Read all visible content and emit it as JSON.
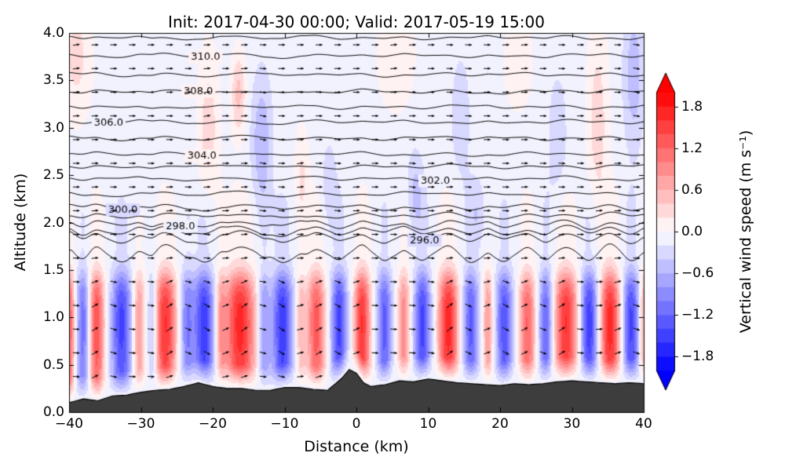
{
  "figure": {
    "title": "Init: 2017-04-30 00:00; Valid: 2017-05-19 15:00",
    "xlabel": "Distance (km)",
    "ylabel": "Altitude (km)",
    "colorbar_label": "Vertical wind speed (m s⁻¹)"
  },
  "chart_data": {
    "type": "heatmap",
    "subtype": "filled-contour-vertical-cross-section",
    "title": "Init: 2017-04-30 00:00; Valid: 2017-05-19 15:00",
    "xlabel": "Distance (km)",
    "ylabel": "Altitude (km)",
    "xlim": [
      -40,
      40
    ],
    "ylim": [
      0,
      4
    ],
    "grid": false,
    "x_ticks": [
      {
        "label": "−40",
        "value": -40
      },
      {
        "label": "−30",
        "value": -30
      },
      {
        "label": "−20",
        "value": -20
      },
      {
        "label": "−10",
        "value": -10
      },
      {
        "label": "0",
        "value": 0
      },
      {
        "label": "10",
        "value": 10
      },
      {
        "label": "20",
        "value": 20
      },
      {
        "label": "30",
        "value": 30
      },
      {
        "label": "40",
        "value": 40
      }
    ],
    "y_ticks": [
      {
        "label": "0.0",
        "value": 0.0
      },
      {
        "label": "0.5",
        "value": 0.5
      },
      {
        "label": "1.0",
        "value": 1.0
      },
      {
        "label": "1.5",
        "value": 1.5
      },
      {
        "label": "2.0",
        "value": 2.0
      },
      {
        "label": "2.5",
        "value": 2.5
      },
      {
        "label": "3.0",
        "value": 3.0
      },
      {
        "label": "3.5",
        "value": 3.5
      },
      {
        "label": "4.0",
        "value": 4.0
      }
    ],
    "colorbar": {
      "label": "Vertical wind speed (m s⁻¹)",
      "cmap": "blue-white-red",
      "vmin": -2.0,
      "vmax": 2.0,
      "level_step": 0.2,
      "extend": "both",
      "ticks": [
        {
          "label": "1.8",
          "value": 1.8
        },
        {
          "label": "1.2",
          "value": 1.2
        },
        {
          "label": "0.6",
          "value": 0.6
        },
        {
          "label": "0.0",
          "value": 0.0
        },
        {
          "label": "−0.6",
          "value": -0.6
        },
        {
          "label": "−1.2",
          "value": -1.2
        },
        {
          "label": "−1.8",
          "value": -1.8
        }
      ]
    },
    "theta_contours": {
      "units": "K",
      "line_color": "#000000",
      "levels": [
        {
          "value": 295,
          "z": 1.66
        },
        {
          "value": 296,
          "z": 1.84
        },
        {
          "value": 297,
          "z": 1.91
        },
        {
          "value": 298,
          "z": 1.98
        },
        {
          "value": 299,
          "z": 2.07
        },
        {
          "value": 300,
          "z": 2.16
        },
        {
          "value": 301,
          "z": 2.3
        },
        {
          "value": 302,
          "z": 2.46
        },
        {
          "value": 303,
          "z": 2.59
        },
        {
          "value": 304,
          "z": 2.72
        },
        {
          "value": 305,
          "z": 2.89
        },
        {
          "value": 306,
          "z": 3.06
        },
        {
          "value": 307,
          "z": 3.22
        },
        {
          "value": 308,
          "z": 3.38
        },
        {
          "value": 309,
          "z": 3.56
        },
        {
          "value": 310,
          "z": 3.76
        },
        {
          "value": 311,
          "z": 3.95
        }
      ],
      "labels": [
        {
          "text": "310.0",
          "value": 310,
          "x": -21
        },
        {
          "text": "308.0",
          "value": 308,
          "x": -22
        },
        {
          "text": "306.0",
          "value": 306,
          "x": -34.5
        },
        {
          "text": "304.0",
          "value": 304,
          "x": -21.5
        },
        {
          "text": "302.0",
          "value": 302,
          "x": 11
        },
        {
          "text": "300.0",
          "value": 300,
          "x": -32.5
        },
        {
          "text": "298.0",
          "value": 298,
          "x": -24.5
        },
        {
          "text": "296.0",
          "value": 296,
          "x": 9.5
        }
      ]
    },
    "w_field": {
      "units": "m s-1",
      "background_offset": -0.08,
      "bands": [
        {
          "x": -39.9,
          "amp": 1.3,
          "sigma": 0.5
        },
        {
          "x": -38.0,
          "amp": -1.1,
          "sigma": 0.7
        },
        {
          "x": -36.2,
          "amp": 1.5,
          "sigma": 0.8
        },
        {
          "x": -32.7,
          "amp": -1.4,
          "sigma": 1.0
        },
        {
          "x": -30.3,
          "amp": 0.9,
          "sigma": 0.6
        },
        {
          "x": -28.4,
          "amp": -0.7,
          "sigma": 0.5
        },
        {
          "x": -26.6,
          "amp": 1.7,
          "sigma": 1.1
        },
        {
          "x": -23.6,
          "amp": -0.9,
          "sigma": 0.7
        },
        {
          "x": -21.2,
          "amp": -1.5,
          "sigma": 1.0
        },
        {
          "x": -18.9,
          "amp": 0.7,
          "sigma": 0.5
        },
        {
          "x": -16.2,
          "amp": 1.8,
          "sigma": 1.5
        },
        {
          "x": -12.9,
          "amp": -0.8,
          "sigma": 0.6
        },
        {
          "x": -10.3,
          "amp": -1.5,
          "sigma": 1.0
        },
        {
          "x": -7.8,
          "amp": 0.6,
          "sigma": 0.5
        },
        {
          "x": -5.6,
          "amp": 1.4,
          "sigma": 0.9
        },
        {
          "x": -2.4,
          "amp": -1.4,
          "sigma": 0.8
        },
        {
          "x": 0.8,
          "amp": 1.7,
          "sigma": 0.8
        },
        {
          "x": 3.9,
          "amp": -1.2,
          "sigma": 0.7
        },
        {
          "x": 6.6,
          "amp": 1.0,
          "sigma": 0.6
        },
        {
          "x": 9.2,
          "amp": -1.4,
          "sigma": 0.8
        },
        {
          "x": 12.8,
          "amp": 1.8,
          "sigma": 1.0
        },
        {
          "x": 15.9,
          "amp": -1.2,
          "sigma": 0.8
        },
        {
          "x": 18.3,
          "amp": 0.9,
          "sigma": 0.5
        },
        {
          "x": 20.6,
          "amp": -1.3,
          "sigma": 0.8
        },
        {
          "x": 23.8,
          "amp": 1.3,
          "sigma": 0.8
        },
        {
          "x": 26.4,
          "amp": -1.2,
          "sigma": 0.7
        },
        {
          "x": 29.2,
          "amp": 1.7,
          "sigma": 1.2
        },
        {
          "x": 32.4,
          "amp": -1.5,
          "sigma": 0.9
        },
        {
          "x": 35.3,
          "amp": 1.8,
          "sigma": 1.0
        },
        {
          "x": 38.2,
          "amp": -1.4,
          "sigma": 0.8
        },
        {
          "x": 40.0,
          "amp": 0.8,
          "sigma": 0.4
        }
      ],
      "upper_blobs": [
        {
          "x": -39.0,
          "z": 3.75,
          "sx": 1.5,
          "sz": 0.45,
          "w": 0.35
        },
        {
          "x": -20.6,
          "z": 3.0,
          "sx": 1.0,
          "sz": 0.55,
          "w": 0.4
        },
        {
          "x": -16.4,
          "z": 3.35,
          "sx": 0.7,
          "sz": 0.3,
          "w": 0.55
        },
        {
          "x": -13.2,
          "z": 2.85,
          "sx": 1.0,
          "sz": 0.5,
          "w": -0.5
        },
        {
          "x": -7.6,
          "z": 2.5,
          "sx": 0.7,
          "sz": 0.35,
          "w": 0.3
        },
        {
          "x": -3.8,
          "z": 2.4,
          "sx": 0.7,
          "sz": 0.3,
          "w": -0.3
        },
        {
          "x": 5.5,
          "z": 3.75,
          "sx": 1.8,
          "sz": 0.4,
          "w": 0.25
        },
        {
          "x": 8.2,
          "z": 2.35,
          "sx": 0.8,
          "sz": 0.3,
          "w": -0.35
        },
        {
          "x": 14.5,
          "z": 3.1,
          "sx": 1.2,
          "sz": 0.6,
          "w": -0.2
        },
        {
          "x": 17.0,
          "z": 2.1,
          "sx": 0.8,
          "sz": 0.25,
          "w": -0.25
        },
        {
          "x": 22.5,
          "z": 3.7,
          "sx": 1.5,
          "sz": 0.4,
          "w": 0.2
        },
        {
          "x": 28.0,
          "z": 2.9,
          "sx": 1.0,
          "sz": 0.5,
          "w": -0.25
        },
        {
          "x": 33.6,
          "z": 3.05,
          "sx": 1.0,
          "sz": 0.7,
          "w": 0.4
        },
        {
          "x": 38.6,
          "z": 3.55,
          "sx": 1.0,
          "sz": 0.55,
          "w": -0.45
        }
      ]
    },
    "terrain": {
      "color": "#3d3d3d",
      "points": [
        [
          -40,
          0.1
        ],
        [
          -38,
          0.14
        ],
        [
          -36,
          0.12
        ],
        [
          -34,
          0.17
        ],
        [
          -32,
          0.18
        ],
        [
          -30,
          0.21
        ],
        [
          -28,
          0.23
        ],
        [
          -26,
          0.24
        ],
        [
          -24,
          0.27
        ],
        [
          -22,
          0.31
        ],
        [
          -20,
          0.27
        ],
        [
          -18,
          0.25
        ],
        [
          -16,
          0.25
        ],
        [
          -14,
          0.23
        ],
        [
          -12,
          0.23
        ],
        [
          -10,
          0.26
        ],
        [
          -8,
          0.26
        ],
        [
          -6,
          0.24
        ],
        [
          -4,
          0.23
        ],
        [
          -2,
          0.36
        ],
        [
          -1,
          0.45
        ],
        [
          0,
          0.41
        ],
        [
          1,
          0.31
        ],
        [
          2,
          0.27
        ],
        [
          4,
          0.29
        ],
        [
          6,
          0.33
        ],
        [
          8,
          0.32
        ],
        [
          10,
          0.35
        ],
        [
          12,
          0.33
        ],
        [
          14,
          0.31
        ],
        [
          16,
          0.3
        ],
        [
          18,
          0.29
        ],
        [
          20,
          0.28
        ],
        [
          22,
          0.3
        ],
        [
          24,
          0.29
        ],
        [
          26,
          0.3
        ],
        [
          28,
          0.32
        ],
        [
          30,
          0.33
        ],
        [
          32,
          0.32
        ],
        [
          34,
          0.31
        ],
        [
          36,
          0.3
        ],
        [
          38,
          0.31
        ],
        [
          40,
          0.3
        ]
      ]
    },
    "wind_vectors": {
      "color": "#000000",
      "grid_dx_km": 2.6,
      "grid_dz_km": 0.25
    }
  }
}
